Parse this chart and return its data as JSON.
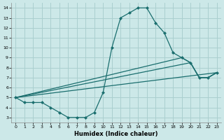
{
  "xlabel": "Humidex (Indice chaleur)",
  "bg_color": "#cce8e8",
  "grid_color": "#aacfcf",
  "line_color": "#1a6e6e",
  "xlim": [
    -0.5,
    23.5
  ],
  "ylim": [
    2.5,
    14.5
  ],
  "xticks": [
    0,
    1,
    2,
    3,
    4,
    5,
    6,
    7,
    8,
    9,
    10,
    11,
    12,
    13,
    14,
    15,
    16,
    17,
    18,
    19,
    20,
    21,
    22,
    23
  ],
  "yticks": [
    3,
    4,
    5,
    6,
    7,
    8,
    9,
    10,
    11,
    12,
    13,
    14
  ],
  "line_main_x": [
    0,
    1,
    2,
    3,
    4,
    5,
    6,
    7,
    8,
    9,
    10,
    11,
    12,
    13,
    14,
    15,
    16,
    17,
    18,
    19,
    20,
    21,
    22,
    23
  ],
  "line_main_y": [
    5.0,
    4.5,
    4.5,
    4.5,
    4.0,
    3.5,
    3.0,
    3.0,
    3.0,
    3.5,
    5.5,
    10.0,
    13.0,
    13.5,
    14.0,
    14.0,
    12.5,
    11.5,
    9.5,
    9.0,
    8.5,
    7.0,
    7.0,
    7.5
  ],
  "line2_x": [
    0,
    23
  ],
  "line2_y": [
    5.0,
    7.5
  ],
  "line3_x": [
    0,
    20,
    21,
    22,
    23
  ],
  "line3_y": [
    5.0,
    8.5,
    7.0,
    7.0,
    7.5
  ],
  "line4_x": [
    0,
    19,
    20,
    21,
    22,
    23
  ],
  "line4_y": [
    5.0,
    9.0,
    8.5,
    7.0,
    7.0,
    7.5
  ]
}
